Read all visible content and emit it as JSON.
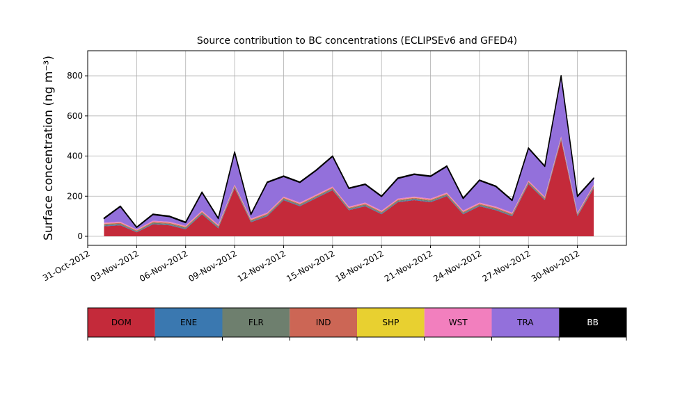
{
  "chart_data": {
    "type": "stacked_area",
    "title": "Source contribution to BC concentrations (ECLIPSEv6 and GFED4)",
    "y_label": "Surface concentration (ng m⁻³)",
    "x": [
      "2012-11-01",
      "2012-11-02",
      "2012-11-03",
      "2012-11-04",
      "2012-11-05",
      "2012-11-06",
      "2012-11-07",
      "2012-11-08",
      "2012-11-09",
      "2012-11-10",
      "2012-11-11",
      "2012-11-12",
      "2012-11-13",
      "2012-11-14",
      "2012-11-15",
      "2012-11-16",
      "2012-11-17",
      "2012-11-18",
      "2012-11-19",
      "2012-11-20",
      "2012-11-21",
      "2012-11-22",
      "2012-11-23",
      "2012-11-24",
      "2012-11-25",
      "2012-11-26",
      "2012-11-27",
      "2012-11-28",
      "2012-11-29",
      "2012-11-30",
      "2012-12-01"
    ],
    "series": [
      {
        "name": "DOM",
        "color": "#c42a3a",
        "values": [
          50,
          55,
          20,
          60,
          55,
          35,
          110,
          40,
          240,
          70,
          100,
          180,
          150,
          190,
          230,
          130,
          150,
          110,
          170,
          180,
          170,
          200,
          110,
          150,
          130,
          100,
          260,
          180,
          480,
          100,
          240
        ]
      },
      {
        "name": "ENE",
        "color": "#3a78b0",
        "values": [
          3,
          3,
          2,
          3,
          3,
          3,
          3,
          3,
          3,
          3,
          3,
          3,
          3,
          3,
          3,
          3,
          3,
          3,
          3,
          3,
          3,
          3,
          3,
          3,
          3,
          3,
          3,
          3,
          3,
          3,
          3
        ]
      },
      {
        "name": "FLR",
        "color": "#6e7f6e",
        "values": [
          5,
          5,
          4,
          5,
          5,
          5,
          5,
          5,
          5,
          5,
          5,
          5,
          5,
          5,
          5,
          5,
          5,
          5,
          5,
          5,
          5,
          5,
          5,
          5,
          5,
          5,
          5,
          5,
          5,
          5,
          5
        ]
      },
      {
        "name": "IND",
        "color": "#cc6655",
        "values": [
          4,
          4,
          3,
          4,
          4,
          4,
          4,
          4,
          4,
          4,
          4,
          4,
          4,
          4,
          4,
          4,
          4,
          4,
          4,
          4,
          4,
          4,
          4,
          4,
          4,
          4,
          4,
          4,
          4,
          4,
          4
        ]
      },
      {
        "name": "SHP",
        "color": "#e8d030",
        "values": [
          1,
          1,
          1,
          1,
          1,
          1,
          1,
          1,
          1,
          1,
          1,
          1,
          1,
          1,
          1,
          1,
          1,
          1,
          1,
          1,
          1,
          1,
          1,
          1,
          1,
          1,
          1,
          1,
          1,
          1,
          1
        ]
      },
      {
        "name": "WST",
        "color": "#f27fbe",
        "values": [
          5,
          5,
          4,
          5,
          5,
          5,
          5,
          5,
          5,
          5,
          5,
          5,
          5,
          5,
          5,
          5,
          5,
          5,
          5,
          5,
          5,
          5,
          5,
          5,
          5,
          5,
          5,
          5,
          5,
          5,
          5
        ]
      },
      {
        "name": "TRA",
        "color": "#9370db",
        "values": [
          20,
          75,
          10,
          30,
          25,
          15,
          90,
          30,
          160,
          20,
          150,
          100,
          100,
          120,
          150,
          90,
          90,
          70,
          100,
          110,
          110,
          130,
          60,
          110,
          100,
          60,
          160,
          150,
          300,
          80,
          30
        ]
      },
      {
        "name": "BB",
        "color": "#000000",
        "values": [
          3,
          3,
          2,
          3,
          3,
          3,
          3,
          3,
          3,
          3,
          3,
          3,
          3,
          3,
          3,
          3,
          3,
          3,
          3,
          3,
          3,
          3,
          3,
          3,
          3,
          3,
          3,
          3,
          3,
          3,
          3
        ]
      }
    ],
    "xlim": [
      "2012-10-31",
      "2012-12-03"
    ],
    "xticks": [
      {
        "value": "2012-10-31",
        "label": "31-Oct-2012"
      },
      {
        "value": "2012-11-03",
        "label": "03-Nov-2012"
      },
      {
        "value": "2012-11-06",
        "label": "06-Nov-2012"
      },
      {
        "value": "2012-11-09",
        "label": "09-Nov-2012"
      },
      {
        "value": "2012-11-12",
        "label": "12-Nov-2012"
      },
      {
        "value": "2012-11-15",
        "label": "15-Nov-2012"
      },
      {
        "value": "2012-11-18",
        "label": "18-Nov-2012"
      },
      {
        "value": "2012-11-21",
        "label": "21-Nov-2012"
      },
      {
        "value": "2012-11-24",
        "label": "24-Nov-2012"
      },
      {
        "value": "2012-11-27",
        "label": "27-Nov-2012"
      },
      {
        "value": "2012-11-30",
        "label": "30-Nov-2012"
      }
    ],
    "ylim": [
      -45,
      925
    ],
    "yticks": [
      0,
      200,
      400,
      600,
      800
    ],
    "grid": true
  }
}
